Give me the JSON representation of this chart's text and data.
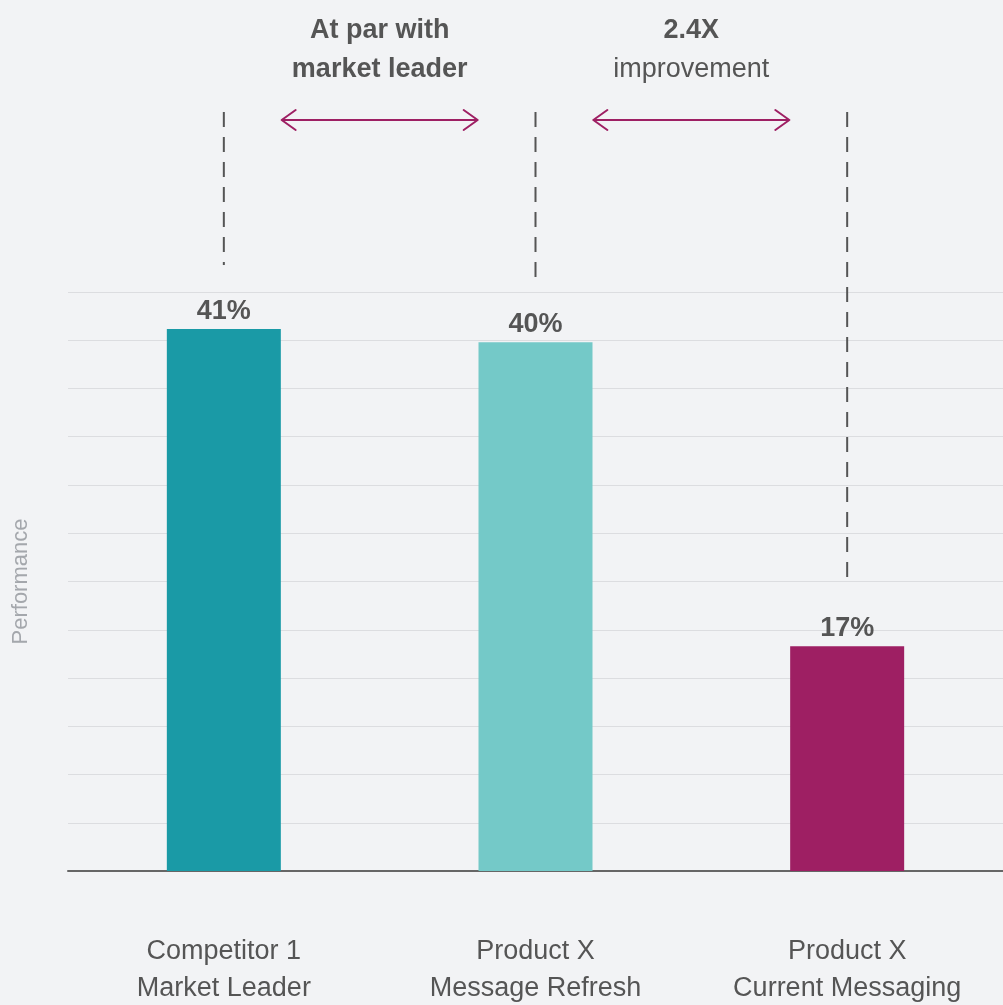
{
  "chart_data": {
    "type": "bar",
    "ylabel": "Performance",
    "categories": [
      "Competitor 1\nMarket Leader",
      "Product X\nMessage Refresh",
      "Product X\nCurrent Messaging"
    ],
    "values": [
      41,
      40,
      17
    ],
    "colors": [
      "#1a9aa6",
      "#74c9c8",
      "#9e1f63"
    ],
    "value_labels": [
      "41%",
      "40%",
      "17%"
    ],
    "ylim": [
      0,
      43.8
    ],
    "yticks": [
      {
        "value": 0,
        "label": null
      },
      {
        "value": 3.65,
        "label": null
      },
      {
        "value": 7.3,
        "label": null
      },
      {
        "value": 10.95,
        "label": null
      },
      {
        "value": 14.6,
        "label": null
      },
      {
        "value": 18.25,
        "label": null
      },
      {
        "value": 21.9,
        "label": null
      },
      {
        "value": 25.55,
        "label": null
      },
      {
        "value": 29.2,
        "label": null
      },
      {
        "value": 32.85,
        "label": null
      },
      {
        "value": 36.5,
        "label": null
      },
      {
        "value": 40.15,
        "label": null
      },
      {
        "value": 43.8,
        "label": null
      }
    ],
    "grid": "y",
    "annotations": [
      "At par with\nmarket leader",
      "2.4X\nimprovement"
    ]
  }
}
